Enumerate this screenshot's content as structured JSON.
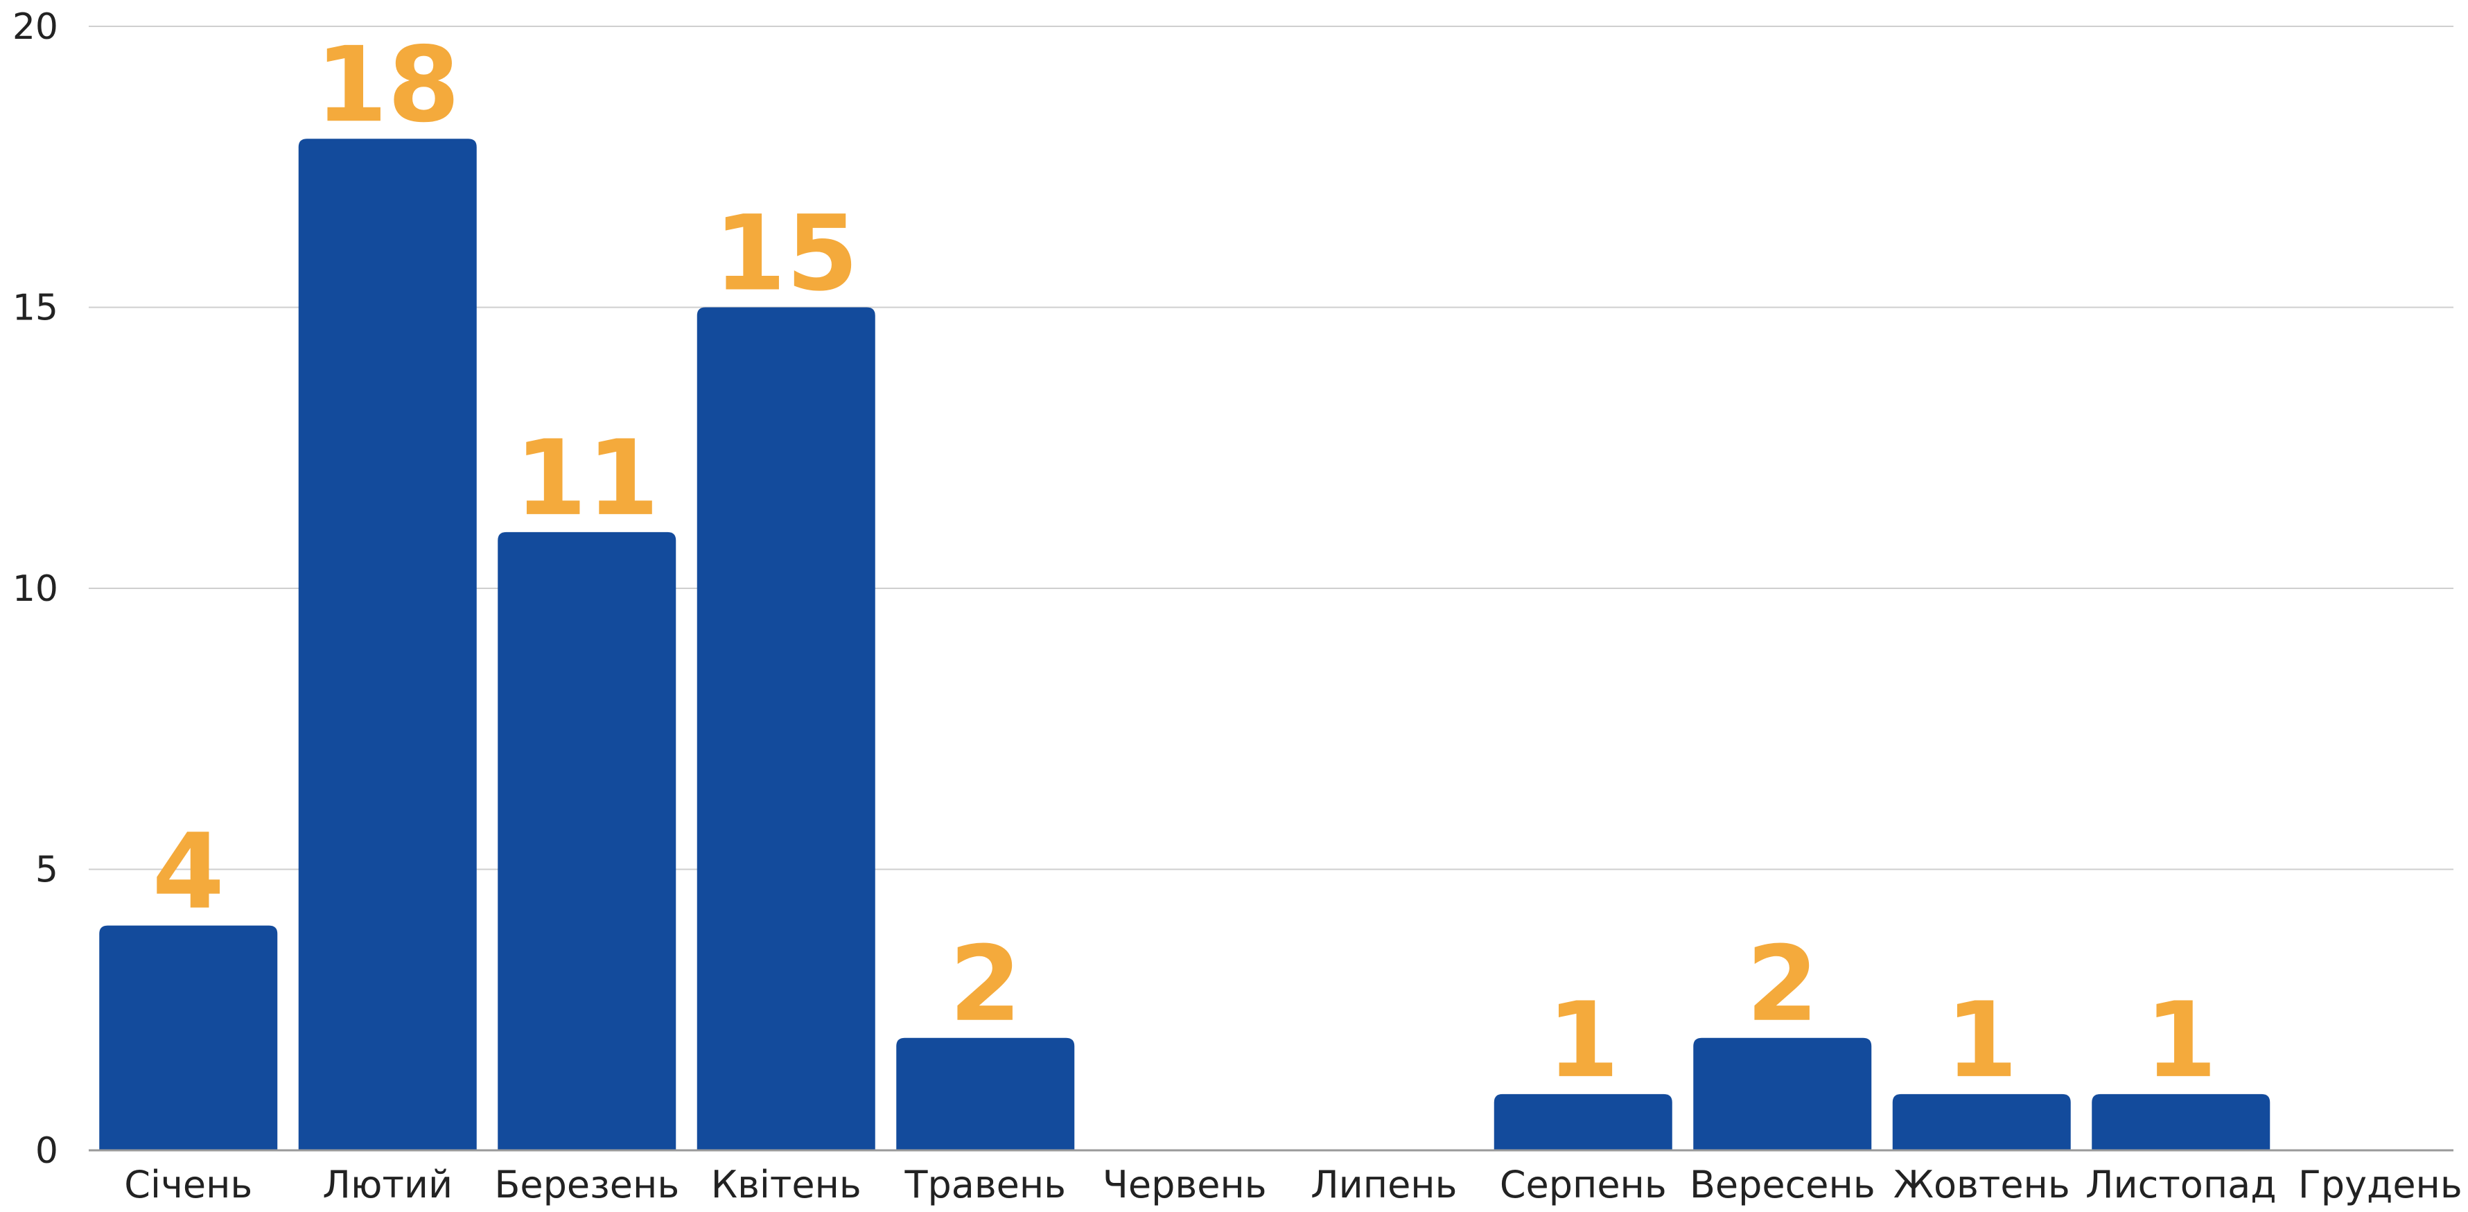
{
  "chart_data": {
    "type": "bar",
    "title": "",
    "xlabel": "",
    "ylabel": "",
    "categories": [
      "Січень",
      "Лютий",
      "Березень",
      "Квітень",
      "Травень",
      "Червень",
      "Липень",
      "Серпень",
      "Вересень",
      "Жовтень",
      "Листопад",
      "Грудень"
    ],
    "values": [
      4,
      18,
      11,
      15,
      2,
      0,
      0,
      1,
      2,
      1,
      1,
      0
    ],
    "data_labels": [
      "4",
      "18",
      "11",
      "15",
      "2",
      "",
      "",
      "1",
      "2",
      "1",
      "1",
      ""
    ],
    "ylim": [
      0,
      20
    ],
    "yticks": [
      0,
      5,
      10,
      15,
      20
    ],
    "grid": true,
    "legend": "none",
    "colors": {
      "bar": "#134B9C",
      "label": "#F4AA3C",
      "grid": "#CFCFCF",
      "axis": "#9A9A9A",
      "text": "#222222"
    }
  }
}
